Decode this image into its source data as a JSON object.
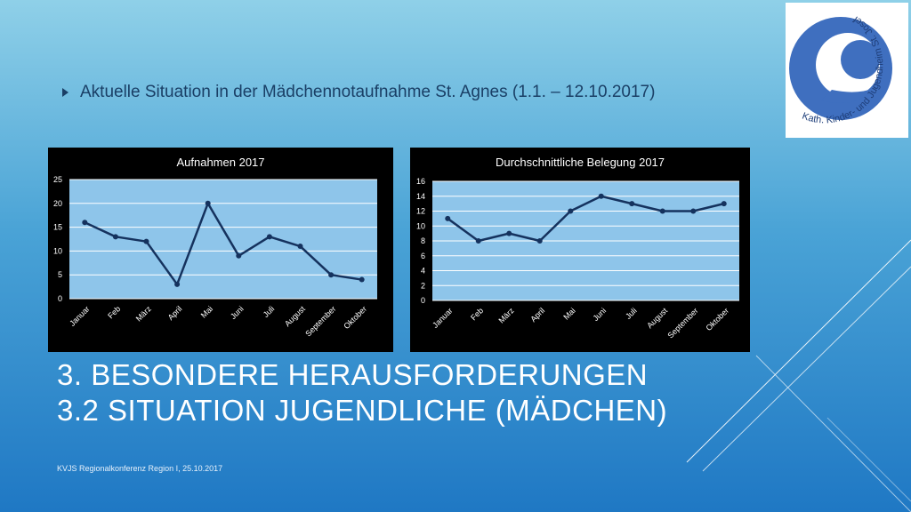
{
  "slide": {
    "bullet_text": "Aktuelle Situation in der Mädchennotaufnahme St. Agnes (1.1. – 12.10.2017)",
    "heading_line1": "3. BESONDERE HERAUSFORDERUNGEN",
    "heading_line2": "3.2 SITUATION  JUGENDLICHE (MÄDCHEN)",
    "footer": "KVJS Regionalkonferenz Region I, 25.10.2017",
    "logo_text": "Kath. Kinder- und Jugendheim St. Josef"
  },
  "colors": {
    "plot_area": "#8ec5ea",
    "line": "#15325e",
    "chart_bg": "#000000",
    "label": "#ffffff"
  },
  "chart_data": [
    {
      "type": "line",
      "title": "Aufnahmen 2017",
      "categories": [
        "Januar",
        "Feb",
        "März",
        "April",
        "Mai",
        "Juni",
        "Juli",
        "August",
        "September",
        "Oktober"
      ],
      "values": [
        16,
        13,
        12,
        3,
        20,
        9,
        13,
        11,
        5,
        4
      ],
      "yticks": [
        0,
        5,
        10,
        15,
        20,
        25
      ],
      "ylim": [
        0,
        25
      ],
      "grid": true
    },
    {
      "type": "line",
      "title": "Durchschnittliche Belegung 2017",
      "categories": [
        "Januar",
        "Feb",
        "März",
        "April",
        "Mai",
        "Juni",
        "Juli",
        "August",
        "September",
        "Oktober"
      ],
      "values": [
        11,
        8,
        9,
        8,
        12,
        14,
        13,
        12,
        12,
        13
      ],
      "yticks": [
        0,
        2,
        4,
        6,
        8,
        10,
        12,
        14,
        16
      ],
      "ylim": [
        0,
        16
      ],
      "grid": true
    }
  ]
}
